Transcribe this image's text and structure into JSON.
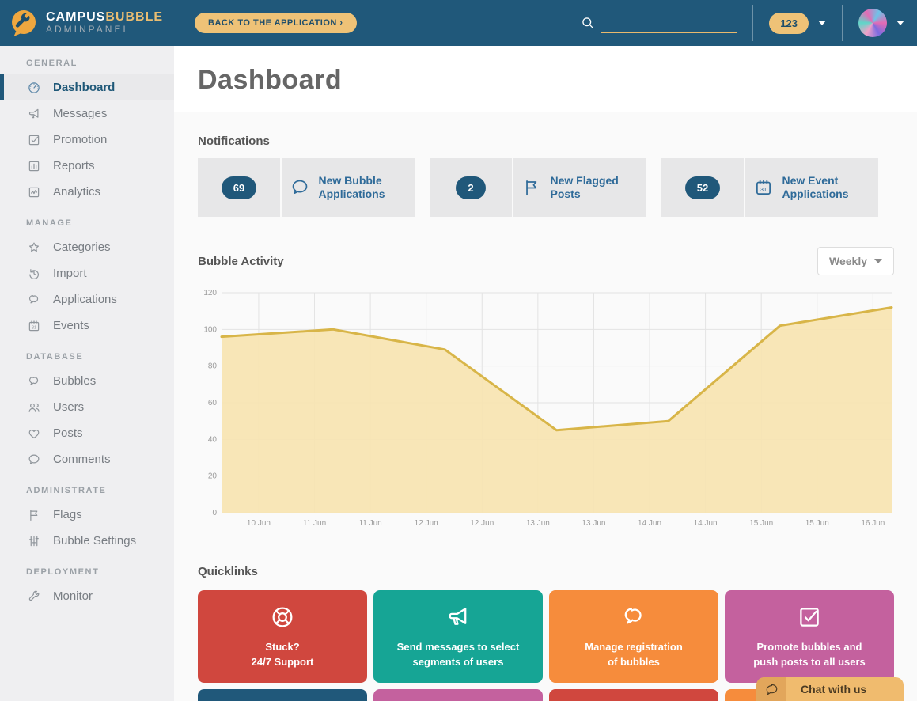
{
  "header": {
    "brand": {
      "campus": "CAMPUS",
      "bubble": "BUBBLE",
      "panel": "ADMINPANEL"
    },
    "back_button": "BACK TO THE APPLICATION ›",
    "search_value": "",
    "badge_count": "123"
  },
  "sidebar": {
    "sections": [
      {
        "label": "GENERAL",
        "items": [
          {
            "label": "Dashboard",
            "icon": "gauge",
            "active": true
          },
          {
            "label": "Messages",
            "icon": "megaphone",
            "active": false
          },
          {
            "label": "Promotion",
            "icon": "check-square",
            "active": false
          },
          {
            "label": "Reports",
            "icon": "bar-chart",
            "active": false
          },
          {
            "label": "Analytics",
            "icon": "line-chart",
            "active": false
          }
        ]
      },
      {
        "label": "MANAGE",
        "items": [
          {
            "label": "Categories",
            "icon": "star",
            "active": false
          },
          {
            "label": "Import",
            "icon": "history",
            "active": false
          },
          {
            "label": "Applications",
            "icon": "bubbles",
            "active": false
          },
          {
            "label": "Events",
            "icon": "calendar",
            "active": false
          }
        ]
      },
      {
        "label": "DATABASE",
        "items": [
          {
            "label": "Bubbles",
            "icon": "bubbles",
            "active": false
          },
          {
            "label": "Users",
            "icon": "users",
            "active": false
          },
          {
            "label": "Posts",
            "icon": "heart",
            "active": false
          },
          {
            "label": "Comments",
            "icon": "comment",
            "active": false
          }
        ]
      },
      {
        "label": "ADMINISTRATE",
        "items": [
          {
            "label": "Flags",
            "icon": "flag",
            "active": false
          },
          {
            "label": "Bubble Settings",
            "icon": "sliders",
            "active": false
          }
        ]
      },
      {
        "label": "DEPLOYMENT",
        "items": [
          {
            "label": "Monitor",
            "icon": "wrench",
            "active": false
          }
        ]
      }
    ]
  },
  "main": {
    "title": "Dashboard",
    "notifications": {
      "label": "Notifications",
      "cards": [
        {
          "count": "69",
          "label": "New Bubble Applications",
          "icon": "comment"
        },
        {
          "count": "2",
          "label": "New Flagged Posts",
          "icon": "flag"
        },
        {
          "count": "52",
          "label": "New Event Applications",
          "icon": "calendar"
        }
      ]
    },
    "activity": {
      "label": "Bubble Activity",
      "range": "Weekly"
    },
    "quicklinks": {
      "label": "Quicklinks",
      "cards": [
        {
          "line1": "Stuck?",
          "line2": "24/7 Support",
          "color": "#d0473e",
          "icon": "life-ring"
        },
        {
          "line1": "Send messages to select",
          "line2": "segments of users",
          "color": "#16a595",
          "icon": "megaphone"
        },
        {
          "line1": "Manage registration",
          "line2": "of bubbles",
          "color": "#f68c3c",
          "icon": "bubbles"
        },
        {
          "line1": "Promote bubbles and",
          "line2": "push posts to all users",
          "color": "#c4619e",
          "icon": "check-square"
        }
      ],
      "partial_row_colors": [
        "#20587a",
        "#c4619e",
        "#d0473e",
        "#f68c3c"
      ]
    }
  },
  "chat": {
    "label": "Chat with us"
  },
  "colors": {
    "header_bg": "#20587a",
    "accent_gold": "#eec277",
    "badge_blue": "#20587a",
    "notif_text_blue": "#2f6b99",
    "chart_line": "#d8b548",
    "chart_fill": "#f7e4b2"
  },
  "chart_data": {
    "type": "area",
    "title": "Bubble Activity",
    "x": [
      "10 Jun",
      "11 Jun",
      "12 Jun",
      "13 Jun",
      "14 Jun",
      "15 Jun",
      "16 Jun"
    ],
    "values": [
      96,
      100,
      89,
      45,
      50,
      102,
      112
    ],
    "x_tick_labels": [
      "10 Jun",
      "11 Jun",
      "11 Jun",
      "12 Jun",
      "12 Jun",
      "13 Jun",
      "13 Jun",
      "14 Jun",
      "14 Jun",
      "15 Jun",
      "15 Jun",
      "16 Jun"
    ],
    "xlabel": "",
    "ylabel": "",
    "ylim": [
      0,
      120
    ],
    "y_ticks": [
      0,
      20,
      40,
      60,
      80,
      100,
      120
    ],
    "grid": true,
    "legend": "none",
    "line_color": "#d8b548",
    "fill_color": "#f7e4b2"
  }
}
